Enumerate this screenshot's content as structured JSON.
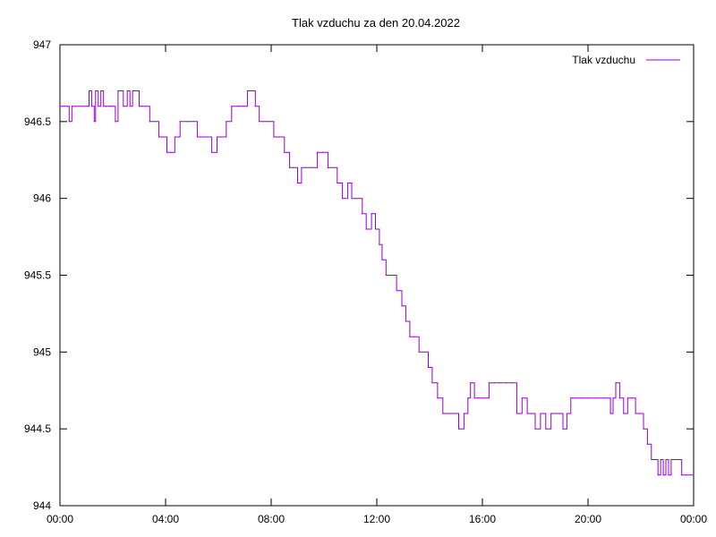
{
  "chart_data": {
    "type": "line",
    "title": "Tlak vzduchu za den 20.04.2022",
    "xlabel": "",
    "ylabel": "",
    "xlim": [
      0,
      24
    ],
    "ylim": [
      944,
      947
    ],
    "grid": false,
    "legend_position": "top-right",
    "x_ticks": [
      {
        "value": 0,
        "label": "00:00"
      },
      {
        "value": 4,
        "label": "04:00"
      },
      {
        "value": 8,
        "label": "08:00"
      },
      {
        "value": 12,
        "label": "12:00"
      },
      {
        "value": 16,
        "label": "16:00"
      },
      {
        "value": 20,
        "label": "20:00"
      },
      {
        "value": 24,
        "label": "00:00"
      }
    ],
    "y_ticks": [
      {
        "value": 944,
        "label": "944"
      },
      {
        "value": 944.5,
        "label": "944.5"
      },
      {
        "value": 945,
        "label": "945"
      },
      {
        "value": 945.5,
        "label": "945.5"
      },
      {
        "value": 946,
        "label": "946"
      },
      {
        "value": 946.5,
        "label": "946.5"
      },
      {
        "value": 947,
        "label": "947"
      }
    ],
    "series": [
      {
        "name": "Tlak vzduchu",
        "color": "#9400d3",
        "x": [
          0.0,
          0.3,
          0.35,
          0.45,
          1.05,
          1.1,
          1.2,
          1.3,
          1.35,
          1.45,
          1.55,
          1.65,
          1.75,
          1.9,
          2.1,
          2.2,
          2.4,
          2.55,
          2.65,
          2.75,
          2.85,
          3.0,
          3.1,
          3.25,
          3.4,
          3.6,
          3.75,
          3.85,
          4.05,
          4.2,
          4.35,
          4.55,
          4.8,
          5.2,
          5.5,
          5.75,
          5.95,
          6.1,
          6.3,
          6.5,
          6.75,
          6.95,
          7.1,
          7.25,
          7.4,
          7.55,
          7.7,
          7.9,
          8.1,
          8.3,
          8.5,
          8.7,
          8.85,
          9.0,
          9.15,
          9.3,
          9.5,
          9.75,
          9.95,
          10.15,
          10.35,
          10.5,
          10.7,
          10.9,
          11.05,
          11.25,
          11.45,
          11.6,
          11.8,
          11.95,
          12.1,
          12.2,
          12.35,
          12.55,
          12.75,
          12.95,
          13.1,
          13.25,
          13.4,
          13.6,
          13.8,
          13.95,
          14.1,
          14.3,
          14.5,
          14.7,
          14.9,
          15.1,
          15.3,
          15.45,
          15.55,
          15.7,
          15.85,
          16.05,
          16.25,
          16.45,
          16.65,
          16.9,
          17.1,
          17.3,
          17.5,
          17.7,
          17.85,
          18.0,
          18.2,
          18.4,
          18.6,
          18.75,
          18.9,
          19.05,
          19.2,
          19.35,
          19.5,
          19.75,
          20.0,
          20.3,
          20.6,
          20.85,
          20.95,
          21.05,
          21.2,
          21.35,
          21.5,
          21.65,
          21.8,
          21.95,
          22.1,
          22.25,
          22.4,
          22.55,
          22.65,
          22.75,
          22.85,
          22.95,
          23.05,
          23.15,
          23.3,
          23.45,
          23.55,
          23.7,
          24.0
        ],
        "y": [
          946.6,
          946.6,
          946.5,
          946.6,
          946.6,
          946.7,
          946.6,
          946.5,
          946.7,
          946.6,
          946.7,
          946.6,
          946.6,
          946.6,
          946.5,
          946.7,
          946.6,
          946.7,
          946.6,
          946.7,
          946.7,
          946.6,
          946.6,
          946.6,
          946.5,
          946.5,
          946.4,
          946.4,
          946.3,
          946.3,
          946.4,
          946.5,
          946.5,
          946.4,
          946.4,
          946.3,
          946.4,
          946.4,
          946.5,
          946.6,
          946.6,
          946.6,
          946.7,
          946.7,
          946.6,
          946.5,
          946.5,
          946.5,
          946.4,
          946.4,
          946.3,
          946.2,
          946.2,
          946.1,
          946.2,
          946.2,
          946.2,
          946.3,
          946.3,
          946.2,
          946.2,
          946.1,
          946.0,
          946.1,
          946.0,
          946.0,
          945.9,
          945.8,
          945.9,
          945.8,
          945.7,
          945.6,
          945.5,
          945.5,
          945.4,
          945.3,
          945.2,
          945.1,
          945.1,
          945.0,
          945.0,
          944.9,
          944.8,
          944.7,
          944.6,
          944.6,
          944.6,
          944.5,
          944.6,
          944.7,
          944.8,
          944.7,
          944.7,
          944.7,
          944.8,
          944.8,
          944.8,
          944.8,
          944.8,
          944.6,
          944.7,
          944.6,
          944.6,
          944.5,
          944.6,
          944.5,
          944.6,
          944.6,
          944.6,
          944.5,
          944.6,
          944.7,
          944.7,
          944.7,
          944.7,
          944.7,
          944.7,
          944.6,
          944.7,
          944.8,
          944.7,
          944.6,
          944.7,
          944.7,
          944.6,
          944.6,
          944.5,
          944.4,
          944.3,
          944.3,
          944.2,
          944.3,
          944.2,
          944.3,
          944.2,
          944.3,
          944.3,
          944.3,
          944.2,
          944.2,
          944.2
        ]
      }
    ]
  }
}
